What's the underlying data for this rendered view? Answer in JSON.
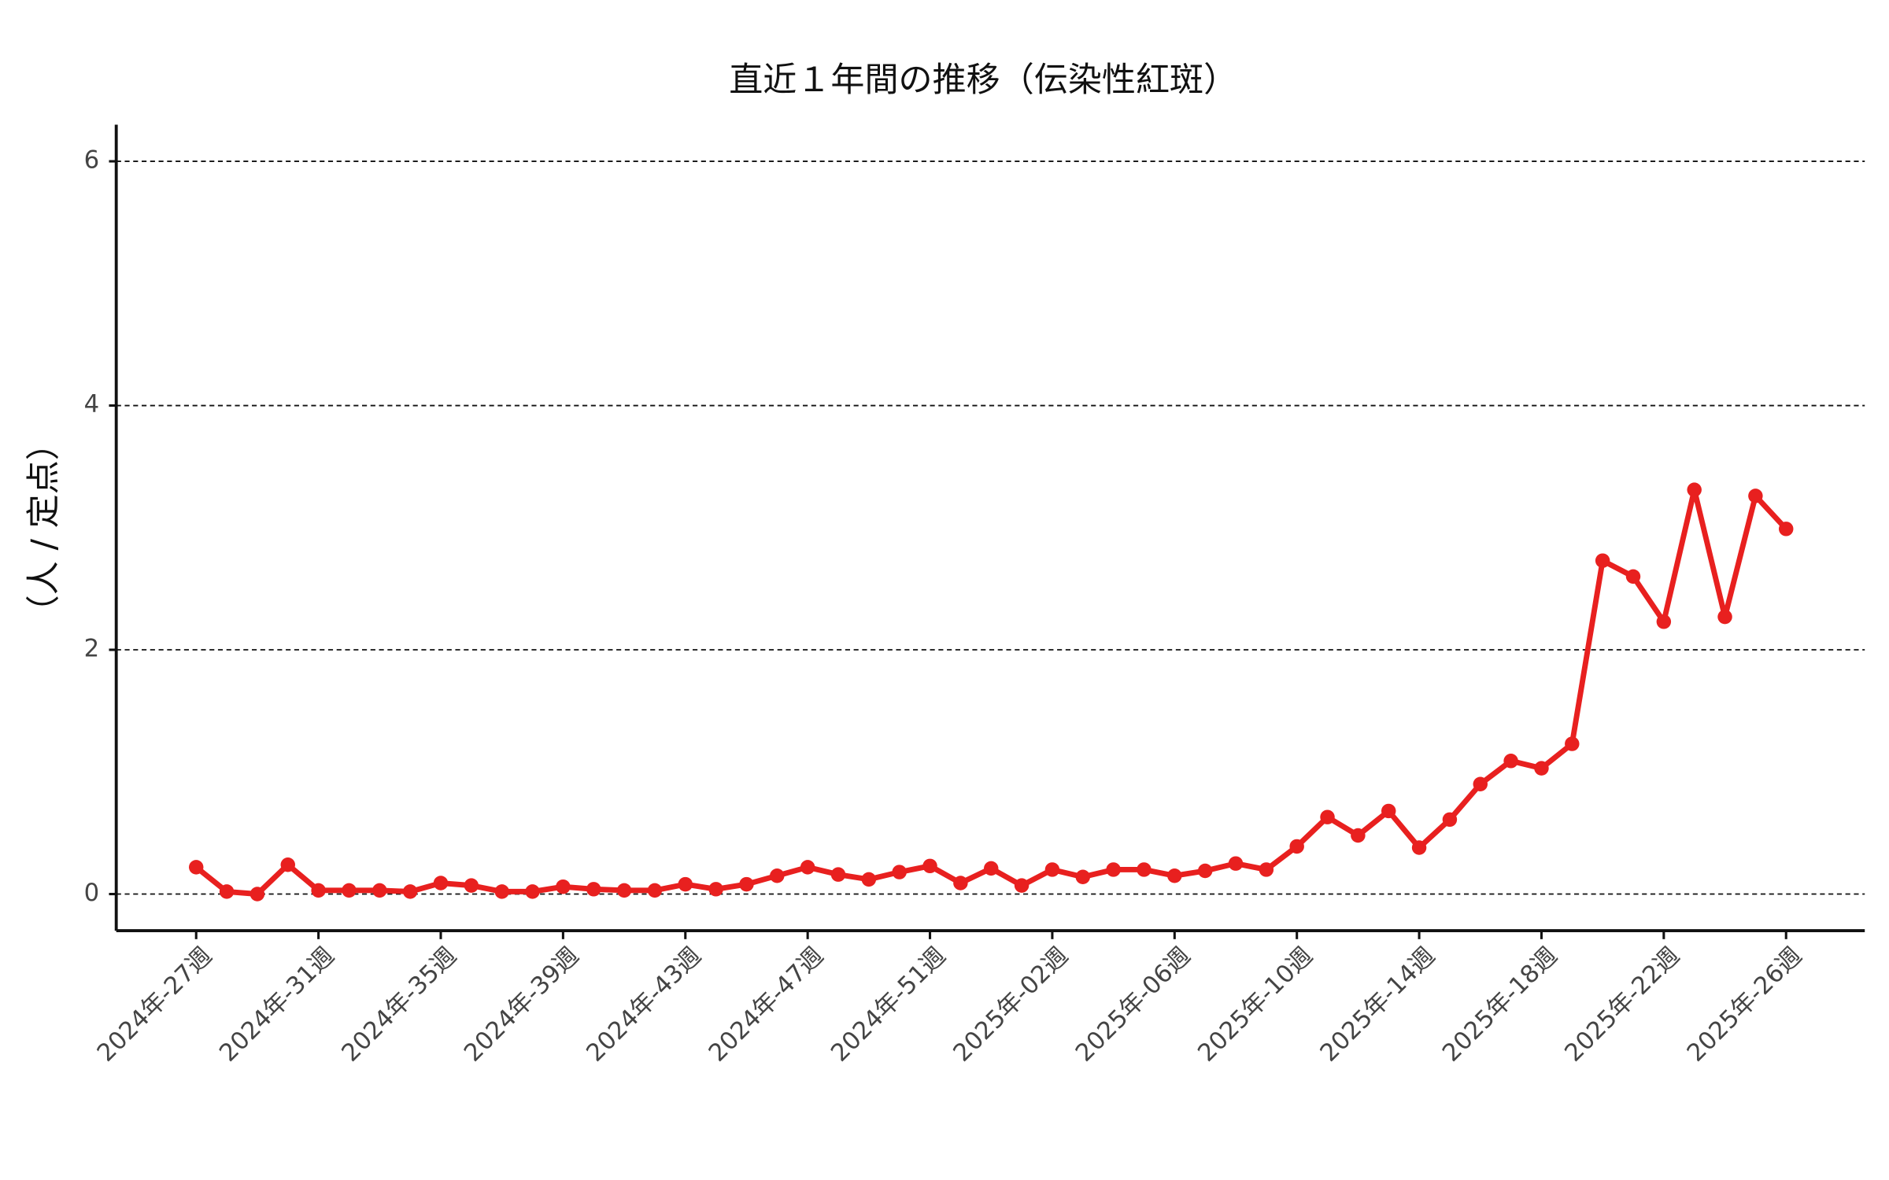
{
  "chart_data": {
    "type": "line",
    "title": "直近１年間の推移（伝染性紅斑）",
    "y_label": "（人 / 定点）",
    "categories": [
      "2024年-27週",
      null,
      null,
      null,
      "2024年-31週",
      null,
      null,
      null,
      "2024年-35週",
      null,
      null,
      null,
      "2024年-39週",
      null,
      null,
      null,
      "2024年-43週",
      null,
      null,
      null,
      "2024年-47週",
      null,
      null,
      null,
      "2024年-51週",
      null,
      null,
      null,
      "2025年-02週",
      null,
      null,
      null,
      "2025年-06週",
      null,
      null,
      null,
      "2025年-10週",
      null,
      null,
      null,
      "2025年-14週",
      null,
      null,
      null,
      "2025年-18週",
      null,
      null,
      null,
      "2025年-22週",
      null,
      null,
      null,
      "2025年-26週"
    ],
    "values": [
      0.22,
      0.02,
      0.0,
      0.24,
      0.03,
      0.03,
      0.03,
      0.02,
      0.09,
      0.07,
      0.02,
      0.02,
      0.06,
      0.04,
      0.03,
      0.03,
      0.08,
      0.04,
      0.08,
      0.15,
      0.22,
      0.16,
      0.12,
      0.18,
      0.23,
      0.09,
      0.21,
      0.07,
      0.2,
      0.14,
      0.2,
      0.2,
      0.15,
      0.19,
      0.25,
      0.2,
      0.39,
      0.63,
      0.48,
      0.68,
      0.38,
      0.61,
      0.9,
      1.09,
      1.03,
      1.23,
      2.73,
      2.6,
      2.23,
      3.31,
      2.27,
      3.26,
      2.99
    ],
    "color": "#e8201f",
    "ylim": [
      -0.3,
      6.3
    ],
    "yticks": [
      0,
      2,
      4,
      6
    ],
    "grid": true
  }
}
